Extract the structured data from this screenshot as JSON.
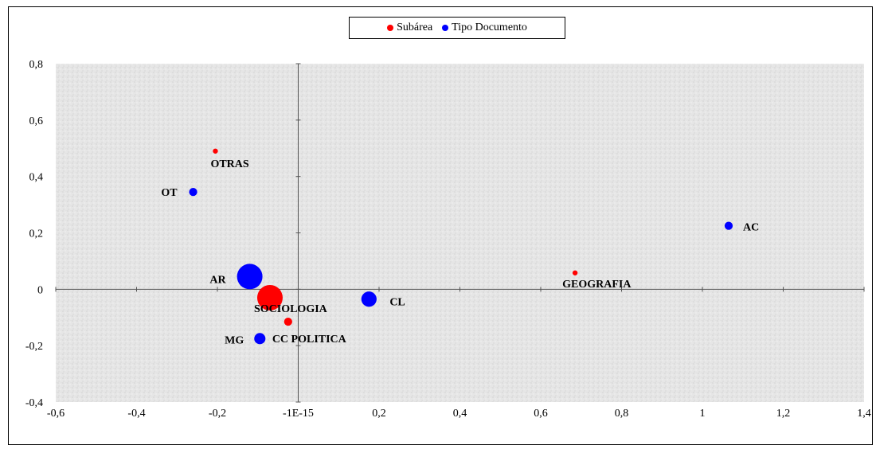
{
  "chart_data": {
    "type": "scatter",
    "title": "",
    "xlabel": "",
    "ylabel": "",
    "xlim": [
      -0.6,
      1.4
    ],
    "ylim": [
      -0.4,
      0.8
    ],
    "x_ticks": [
      "-0,6",
      "-0,4",
      "-0,2",
      "-1E-15",
      "0,2",
      "0,4",
      "0,6",
      "0,8",
      "1",
      "1,2",
      "1,4"
    ],
    "x_tick_values": [
      -0.6,
      -0.4,
      -0.2,
      0,
      0.2,
      0.4,
      0.6,
      0.8,
      1,
      1.2,
      1.4
    ],
    "y_ticks": [
      "0,8",
      "0,6",
      "0,4",
      "0,2",
      "0",
      "-0,2",
      "-0,4"
    ],
    "y_tick_values": [
      0.8,
      0.6,
      0.4,
      0.2,
      0,
      -0.2,
      -0.4
    ],
    "legend_position": "top-center",
    "grid": false,
    "series": [
      {
        "name": "Subárea",
        "color": "#ff0000",
        "points": [
          {
            "label": "OTRAS",
            "x": -0.205,
            "y": 0.49,
            "size": 1
          },
          {
            "label": "GEOGRAFIA",
            "x": 0.685,
            "y": 0.058,
            "size": 1
          },
          {
            "label": "SOCIOLOGIA",
            "x": -0.07,
            "y": -0.03,
            "size": 5
          },
          {
            "label": "CC POLITICA",
            "x": -0.025,
            "y": -0.115,
            "size": 1.6
          }
        ]
      },
      {
        "name": "Tipo Documento",
        "color": "#0000ff",
        "points": [
          {
            "label": "OT",
            "x": -0.26,
            "y": 0.345,
            "size": 1.6
          },
          {
            "label": "AC",
            "x": 1.065,
            "y": 0.225,
            "size": 1.6
          },
          {
            "label": "AR",
            "x": -0.12,
            "y": 0.045,
            "size": 5
          },
          {
            "label": "CL",
            "x": 0.175,
            "y": -0.035,
            "size": 3
          },
          {
            "label": "MG",
            "x": -0.095,
            "y": -0.175,
            "size": 2.2
          }
        ]
      }
    ]
  }
}
